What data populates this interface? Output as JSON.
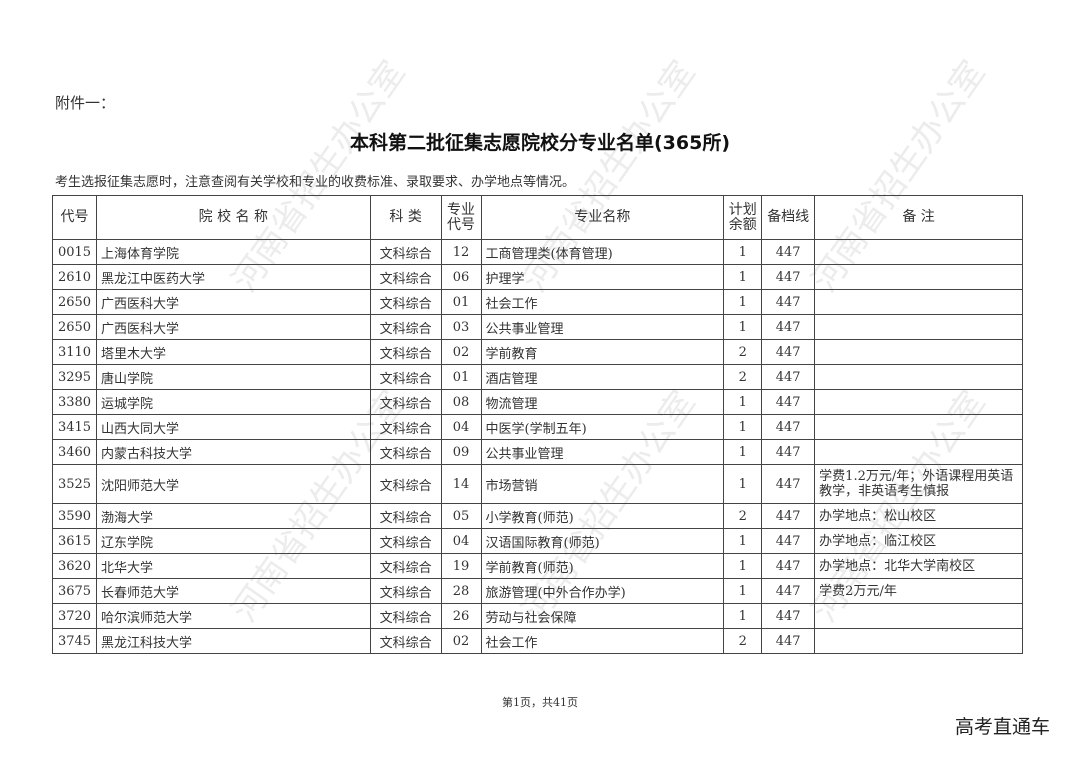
{
  "annex": "附件一：",
  "title": "本科第二批征集志愿院校分专业名单(365所)",
  "note": "考生选报征集志愿时，注意查阅有关学校和专业的收费标准、录取要求、办学地点等情况。",
  "headers": [
    "代号",
    "院 校 名 称",
    "科 类",
    "专业代号",
    "专业名称",
    "计划余额",
    "备档线",
    "备 注"
  ],
  "rows": [
    {
      "code": "0015",
      "school": "上海体育学院",
      "category": "文科综合",
      "major_code": "12",
      "major": "工商管理类(体育管理)",
      "quota": "1",
      "score": "447",
      "remark": ""
    },
    {
      "code": "2610",
      "school": "黑龙江中医药大学",
      "category": "文科综合",
      "major_code": "06",
      "major": "护理学",
      "quota": "1",
      "score": "447",
      "remark": ""
    },
    {
      "code": "2650",
      "school": "广西医科大学",
      "category": "文科综合",
      "major_code": "01",
      "major": "社会工作",
      "quota": "1",
      "score": "447",
      "remark": ""
    },
    {
      "code": "2650",
      "school": "广西医科大学",
      "category": "文科综合",
      "major_code": "03",
      "major": "公共事业管理",
      "quota": "1",
      "score": "447",
      "remark": ""
    },
    {
      "code": "3110",
      "school": "塔里木大学",
      "category": "文科综合",
      "major_code": "02",
      "major": "学前教育",
      "quota": "2",
      "score": "447",
      "remark": ""
    },
    {
      "code": "3295",
      "school": "唐山学院",
      "category": "文科综合",
      "major_code": "01",
      "major": "酒店管理",
      "quota": "2",
      "score": "447",
      "remark": ""
    },
    {
      "code": "3380",
      "school": "运城学院",
      "category": "文科综合",
      "major_code": "08",
      "major": "物流管理",
      "quota": "1",
      "score": "447",
      "remark": ""
    },
    {
      "code": "3415",
      "school": "山西大同大学",
      "category": "文科综合",
      "major_code": "04",
      "major": "中医学(学制五年)",
      "quota": "1",
      "score": "447",
      "remark": ""
    },
    {
      "code": "3460",
      "school": "内蒙古科技大学",
      "category": "文科综合",
      "major_code": "09",
      "major": "公共事业管理",
      "quota": "1",
      "score": "447",
      "remark": ""
    },
    {
      "code": "3525",
      "school": "沈阳师范大学",
      "category": "文科综合",
      "major_code": "14",
      "major": "市场营销",
      "quota": "1",
      "score": "447",
      "remark": "学费1.2万元/年；外语课程用英语教学，非英语考生慎报"
    },
    {
      "code": "3590",
      "school": "渤海大学",
      "category": "文科综合",
      "major_code": "05",
      "major": "小学教育(师范)",
      "quota": "2",
      "score": "447",
      "remark": "办学地点：松山校区"
    },
    {
      "code": "3615",
      "school": "辽东学院",
      "category": "文科综合",
      "major_code": "04",
      "major": "汉语国际教育(师范)",
      "quota": "1",
      "score": "447",
      "remark": "办学地点：临江校区"
    },
    {
      "code": "3620",
      "school": "北华大学",
      "category": "文科综合",
      "major_code": "19",
      "major": "学前教育(师范)",
      "quota": "1",
      "score": "447",
      "remark": "办学地点：北华大学南校区"
    },
    {
      "code": "3675",
      "school": "长春师范大学",
      "category": "文科综合",
      "major_code": "28",
      "major": "旅游管理(中外合作办学)",
      "quota": "1",
      "score": "447",
      "remark": "学费2万元/年"
    },
    {
      "code": "3720",
      "school": "哈尔滨师范大学",
      "category": "文科综合",
      "major_code": "26",
      "major": "劳动与社会保障",
      "quota": "1",
      "score": "447",
      "remark": ""
    },
    {
      "code": "3745",
      "school": "黑龙江科技大学",
      "category": "文科综合",
      "major_code": "02",
      "major": "社会工作",
      "quota": "2",
      "score": "447",
      "remark": ""
    }
  ],
  "footer": "第1页，共41页",
  "brand": "高考直通车",
  "watermark": "河南省招生办公室"
}
